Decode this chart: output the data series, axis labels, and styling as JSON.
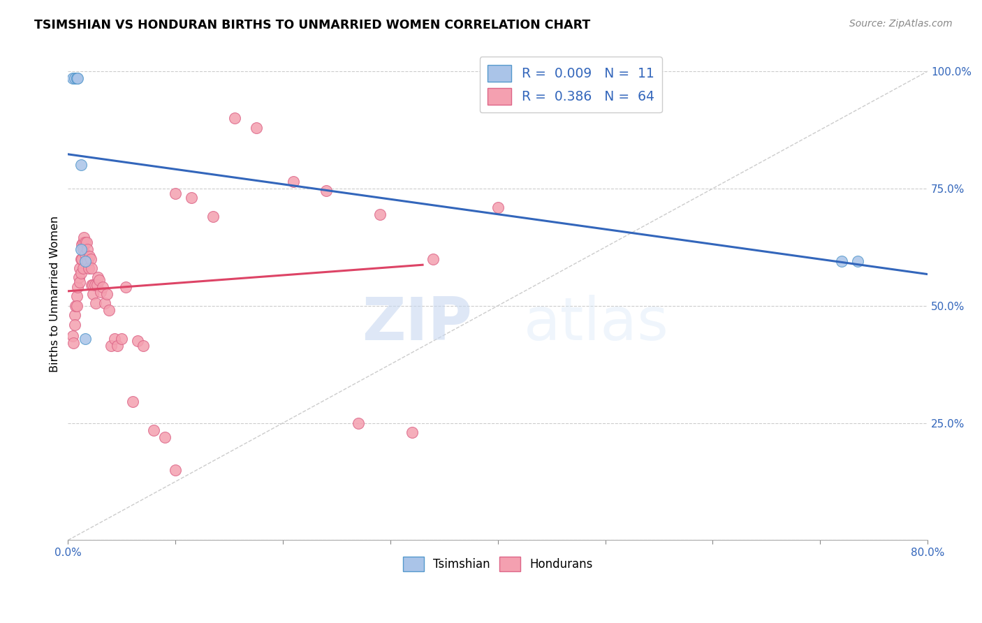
{
  "title": "TSIMSHIAN VS HONDURAN BIRTHS TO UNMARRIED WOMEN CORRELATION CHART",
  "source": "Source: ZipAtlas.com",
  "ylabel": "Births to Unmarried Women",
  "xmin": 0.0,
  "xmax": 0.8,
  "ymin": 0.0,
  "ymax": 1.05,
  "x_ticks": [
    0.0,
    0.1,
    0.2,
    0.3,
    0.4,
    0.5,
    0.6,
    0.7,
    0.8
  ],
  "x_tick_labels": [
    "0.0%",
    "",
    "",
    "",
    "",
    "",
    "",
    "",
    "80.0%"
  ],
  "y_ticks": [
    0.0,
    0.25,
    0.5,
    0.75,
    1.0
  ],
  "y_tick_labels": [
    "",
    "25.0%",
    "50.0%",
    "75.0%",
    "100.0%"
  ],
  "grid_color": "#cccccc",
  "tsimshian_color": "#aac4e8",
  "honduran_color": "#f4a0b0",
  "tsimshian_edge": "#5599cc",
  "honduran_edge": "#dd6688",
  "trend_blue": "#3366bb",
  "trend_pink": "#dd4466",
  "trend_gray": "#cccccc",
  "legend_R_blue": "0.009",
  "legend_N_blue": "11",
  "legend_R_pink": "0.386",
  "legend_N_pink": "64",
  "watermark_zip": "ZIP",
  "watermark_atlas": "atlas",
  "tsimshian_x": [
    0.004,
    0.006,
    0.008,
    0.008,
    0.009,
    0.012,
    0.012,
    0.016,
    0.016,
    0.72,
    0.735
  ],
  "tsimshian_y": [
    0.985,
    0.985,
    0.985,
    0.985,
    0.985,
    0.62,
    0.8,
    0.595,
    0.43,
    0.595,
    0.595
  ],
  "honduran_x": [
    0.004,
    0.005,
    0.006,
    0.006,
    0.007,
    0.008,
    0.008,
    0.009,
    0.01,
    0.011,
    0.011,
    0.012,
    0.012,
    0.013,
    0.013,
    0.014,
    0.014,
    0.014,
    0.015,
    0.016,
    0.016,
    0.017,
    0.018,
    0.018,
    0.019,
    0.02,
    0.021,
    0.022,
    0.022,
    0.023,
    0.023,
    0.025,
    0.026,
    0.027,
    0.028,
    0.029,
    0.03,
    0.032,
    0.034,
    0.036,
    0.038,
    0.04,
    0.043,
    0.046,
    0.05,
    0.054,
    0.06,
    0.065,
    0.07,
    0.08,
    0.09,
    0.1,
    0.115,
    0.135,
    0.155,
    0.175,
    0.21,
    0.24,
    0.29,
    0.34,
    0.4,
    0.1,
    0.27,
    0.32
  ],
  "honduran_y": [
    0.435,
    0.42,
    0.48,
    0.46,
    0.5,
    0.52,
    0.5,
    0.54,
    0.56,
    0.58,
    0.55,
    0.6,
    0.57,
    0.63,
    0.6,
    0.635,
    0.62,
    0.58,
    0.645,
    0.635,
    0.61,
    0.635,
    0.62,
    0.595,
    0.58,
    0.605,
    0.6,
    0.58,
    0.545,
    0.545,
    0.525,
    0.545,
    0.505,
    0.545,
    0.56,
    0.555,
    0.53,
    0.54,
    0.505,
    0.525,
    0.49,
    0.415,
    0.43,
    0.415,
    0.43,
    0.54,
    0.295,
    0.425,
    0.415,
    0.235,
    0.22,
    0.15,
    0.73,
    0.69,
    0.9,
    0.88,
    0.765,
    0.745,
    0.695,
    0.6,
    0.71,
    0.74,
    0.25,
    0.23
  ]
}
